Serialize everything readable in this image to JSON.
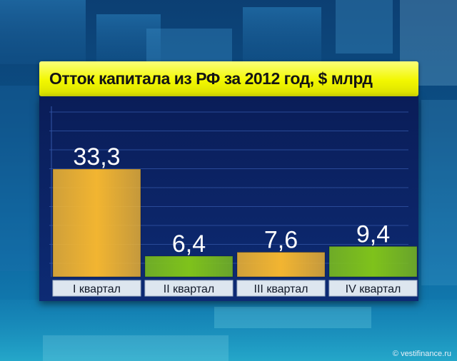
{
  "chart_data": {
    "type": "bar",
    "title": "Отток капитала из РФ за 2012 год, $ млрд",
    "categories": [
      "I квартал",
      "II квартал",
      "III квартал",
      "IV квартал"
    ],
    "values": [
      33.3,
      6.4,
      7.6,
      9.4
    ],
    "value_labels": [
      "33,3",
      "6,4",
      "7,6",
      "9,4"
    ],
    "bar_colors": [
      "#f2b531",
      "#7fc21b",
      "#f2b531",
      "#7fc21b"
    ],
    "grid": true,
    "legend": "none"
  },
  "credit": "© vestifinance.ru",
  "colors": {
    "title_bar": "#f2f700",
    "panel": "#0d2b74",
    "label_strip": "#dde6ef"
  }
}
